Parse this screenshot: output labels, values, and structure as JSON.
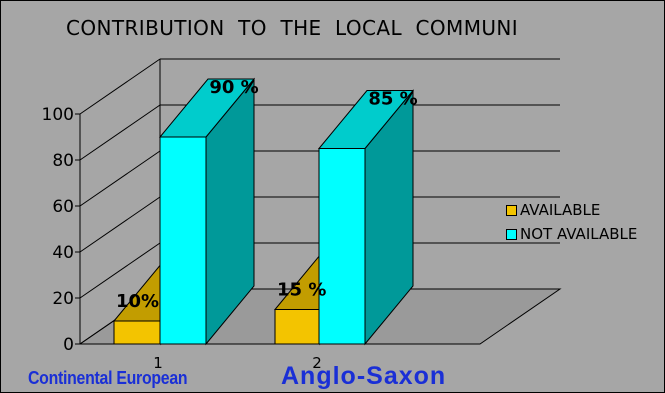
{
  "chart_data": {
    "type": "bar",
    "title": "CONTRIBUTION  TO  THE  LOCAL  COMMUNI",
    "categories": [
      "1",
      "2"
    ],
    "category_names": [
      "Continental European",
      "Anglo-Saxon"
    ],
    "series": [
      {
        "name": "AVAILABLE",
        "values": [
          10,
          15
        ],
        "labels": [
          "10%",
          "15 %"
        ],
        "color": "#f3c400"
      },
      {
        "name": "NOT AVAILABLE",
        "values": [
          90,
          85
        ],
        "labels": [
          "90 %",
          "85 %"
        ],
        "color": "#00ffff"
      }
    ],
    "yticks": [
      0,
      20,
      40,
      60,
      80,
      100
    ],
    "ylim": [
      0,
      100
    ],
    "legend_position": "right",
    "grid": true,
    "style": "3d-bar"
  },
  "colors": {
    "background": "#a6a6a6",
    "floor": "#9a9a9a",
    "category_text": "#1a2fd6"
  }
}
